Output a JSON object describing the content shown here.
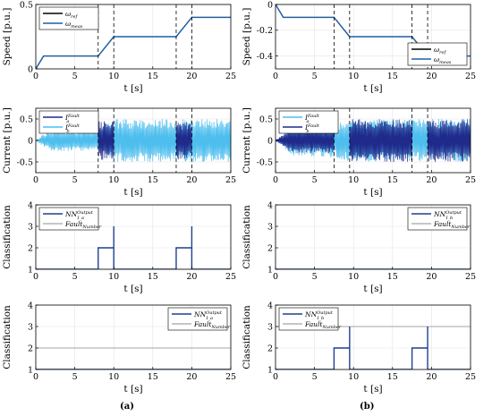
{
  "figure": {
    "label_a": "(a)",
    "label_b": "(b)"
  },
  "colors": {
    "ref": "#000000",
    "meas": "#1f5fa6",
    "current_light": "#4dbeee",
    "current_dark": "#1f2a8a",
    "nn": "#1f3f8f",
    "fault": "#8c8c8c",
    "axis": "#000000",
    "vline": "#000000"
  },
  "chart_data": [
    {
      "type": "line",
      "panel": "a1",
      "xlabel": "t [s]",
      "ylabel": "Speed [p.u.]",
      "xlim": [
        0,
        25
      ],
      "ylim": [
        0,
        0.5
      ],
      "xticks": [
        "0",
        "5",
        "10",
        "15",
        "20",
        "25"
      ],
      "yticks": [
        "0",
        "0.5"
      ],
      "legend": {
        "position": "top-left",
        "entries": [
          {
            "name": "ω_ref",
            "base": "ω",
            "sub": "ref",
            "style": "ref"
          },
          {
            "name": "ω_meas",
            "base": "ω",
            "sub": "meas",
            "style": "meas"
          }
        ]
      },
      "vlines": [
        8,
        10,
        18,
        20
      ],
      "series": [
        {
          "name": "ω_ref",
          "style": "ref",
          "x": [
            0,
            1,
            2,
            8,
            10,
            18,
            20,
            25
          ],
          "y": [
            0,
            0.1,
            0.1,
            0.1,
            0.25,
            0.25,
            0.4,
            0.4
          ]
        },
        {
          "name": "ω_meas",
          "style": "meas",
          "x": [
            0,
            1,
            2,
            8,
            10,
            18,
            20,
            25
          ],
          "y": [
            0,
            0.1,
            0.1,
            0.1,
            0.25,
            0.25,
            0.4,
            0.4
          ]
        }
      ]
    },
    {
      "type": "line",
      "panel": "b1",
      "xlabel": "t [s]",
      "ylabel": "Speed [p.u.]",
      "xlim": [
        0,
        25
      ],
      "ylim": [
        -0.5,
        0
      ],
      "xticks": [
        "0",
        "5",
        "10",
        "15",
        "20",
        "25"
      ],
      "yticks": [
        "0",
        "-0.2",
        "-0.4"
      ],
      "legend": {
        "position": "bottom-right",
        "entries": [
          {
            "name": "ω_ref",
            "base": "ω",
            "sub": "ref",
            "style": "ref"
          },
          {
            "name": "ω_meas",
            "base": "ω",
            "sub": "meas",
            "style": "meas"
          }
        ]
      },
      "vlines": [
        7.5,
        9.5,
        17.5,
        19.5
      ],
      "series": [
        {
          "name": "ω_ref",
          "style": "ref",
          "x": [
            0,
            1,
            2,
            7.5,
            9.5,
            17.5,
            19.5,
            25
          ],
          "y": [
            0,
            -0.1,
            -0.1,
            -0.1,
            -0.25,
            -0.25,
            -0.4,
            -0.4
          ]
        },
        {
          "name": "ω_meas",
          "style": "meas",
          "x": [
            0,
            1,
            2,
            7.5,
            9.5,
            17.5,
            19.5,
            25
          ],
          "y": [
            0,
            -0.1,
            -0.1,
            -0.1,
            -0.25,
            -0.25,
            -0.4,
            -0.4
          ]
        }
      ]
    },
    {
      "type": "area",
      "panel": "a2",
      "xlabel": "t [s]",
      "ylabel": "Current [p.u.]",
      "xlim": [
        0,
        25
      ],
      "ylim": [
        -0.75,
        0.75
      ],
      "xticks": [
        "0",
        "5",
        "10",
        "15",
        "20",
        "25"
      ],
      "yticks": [
        "0.5",
        "0",
        "-0.5"
      ],
      "legend": {
        "position": "top-left",
        "entries": [
          {
            "name": "I_a^Fault",
            "base": "I",
            "sup": "Fault",
            "sub": "a",
            "style": "current_dark"
          },
          {
            "name": "I_b^Fault",
            "base": "I",
            "sup": "Fault",
            "sub": "b",
            "style": "current_light"
          }
        ]
      },
      "vlines": [
        8,
        10,
        18,
        20
      ],
      "envelopes": [
        {
          "name": "I_b^Fault",
          "style": "current_light",
          "x": [
            0,
            1,
            2,
            8,
            10,
            18,
            20,
            25
          ],
          "amp": [
            0,
            0.15,
            0.25,
            0.25,
            0.5,
            0.5,
            0.5,
            0.5
          ]
        },
        {
          "name": "I_a^Fault",
          "style": "current_dark",
          "x": [
            8,
            10
          ],
          "amp": [
            0.45,
            0.45
          ]
        },
        {
          "name": "I_a^Fault",
          "style": "current_dark",
          "x": [
            18,
            20
          ],
          "amp": [
            0.45,
            0.45
          ]
        }
      ]
    },
    {
      "type": "area",
      "panel": "b2",
      "xlabel": "t [s]",
      "ylabel": "Current [p.u.]",
      "xlim": [
        0,
        25
      ],
      "ylim": [
        -0.75,
        0.75
      ],
      "xticks": [
        "0",
        "5",
        "10",
        "15",
        "20",
        "25"
      ],
      "yticks": [
        "0.5",
        "0",
        "-0.5"
      ],
      "legend": {
        "position": "top-left",
        "entries": [
          {
            "name": "I_a^Fault",
            "base": "I",
            "sup": "Fault",
            "sub": "a",
            "style": "current_light"
          },
          {
            "name": "I_b^Fault",
            "base": "I",
            "sup": "Fault",
            "sub": "b",
            "style": "current_dark"
          }
        ]
      },
      "vlines": [
        7.5,
        9.5,
        17.5,
        19.5
      ],
      "envelopes": [
        {
          "name": "I_a^Fault",
          "style": "current_light",
          "x": [
            0,
            1,
            2,
            7.5,
            9.5,
            17.5,
            19.5,
            25
          ],
          "amp": [
            0,
            0.15,
            0.35,
            0.4,
            0.5,
            0.5,
            0.5,
            0.5
          ]
        },
        {
          "name": "I_b^Fault",
          "style": "current_dark",
          "x": [
            0,
            1,
            2,
            7.5
          ],
          "amp": [
            0,
            0.15,
            0.3,
            0.3
          ]
        },
        {
          "name": "I_b^Fault",
          "style": "current_dark",
          "x": [
            9.5,
            17.5
          ],
          "amp": [
            0.5,
            0.5
          ]
        },
        {
          "name": "I_b^Fault",
          "style": "current_dark",
          "x": [
            19.5,
            25
          ],
          "amp": [
            0.5,
            0.5
          ]
        }
      ]
    },
    {
      "type": "line",
      "panel": "a3",
      "xlabel": "t [s]",
      "ylabel": "Classification",
      "xlim": [
        0,
        25
      ],
      "ylim": [
        1,
        4
      ],
      "xticks": [
        "0",
        "5",
        "10",
        "15",
        "20",
        "25"
      ],
      "yticks": [
        "1",
        "2",
        "3",
        "4"
      ],
      "legend": {
        "position": "top-left",
        "entries": [
          {
            "name": "NN_Ia^Output",
            "base": "NN",
            "sup": "Output",
            "sub": "I_a",
            "style": "nn"
          },
          {
            "name": "Fault_Number",
            "base": "Fault",
            "sub": "Number",
            "style": "fault"
          }
        ]
      },
      "series": [
        {
          "name": "Fault_Number",
          "style": "fault",
          "x": [
            0,
            25
          ],
          "y": [
            1,
            1
          ]
        },
        {
          "name": "NN_Ia^Output",
          "style": "nn",
          "x": [
            0,
            8,
            8,
            10,
            10,
            10,
            18,
            18,
            20,
            20,
            20,
            25
          ],
          "y": [
            1,
            1,
            2,
            2,
            3,
            1,
            1,
            2,
            2,
            3,
            1,
            1
          ]
        }
      ]
    },
    {
      "type": "line",
      "panel": "b3",
      "xlabel": "t [s]",
      "ylabel": "Classification",
      "xlim": [
        0,
        25
      ],
      "ylim": [
        1,
        4
      ],
      "xticks": [
        "0",
        "5",
        "10",
        "15",
        "20",
        "25"
      ],
      "yticks": [
        "1",
        "2",
        "3",
        "4"
      ],
      "legend": {
        "position": "top-right",
        "entries": [
          {
            "name": "NN_Ib^Output",
            "base": "NN",
            "sup": "Output",
            "sub": "I_b",
            "style": "nn"
          },
          {
            "name": "Fault_Number",
            "base": "Fault",
            "sub": "Number",
            "style": "fault"
          }
        ]
      },
      "series": [
        {
          "name": "Fault_Number",
          "style": "fault",
          "x": [
            0,
            25
          ],
          "y": [
            1,
            1
          ]
        },
        {
          "name": "NN_Ib^Output",
          "style": "nn",
          "x": [
            0,
            25
          ],
          "y": [
            1,
            1
          ]
        }
      ]
    },
    {
      "type": "line",
      "panel": "a4",
      "xlabel": "t [s]",
      "ylabel": "Classification",
      "xlim": [
        0,
        25
      ],
      "ylim": [
        1,
        4
      ],
      "xticks": [
        "0",
        "5",
        "10",
        "15",
        "20",
        "25"
      ],
      "yticks": [
        "1",
        "2",
        "3",
        "4"
      ],
      "legend": {
        "position": "top-right",
        "entries": [
          {
            "name": "NN_Ia^Output",
            "base": "NN",
            "sup": "Output",
            "sub": "I_a",
            "style": "nn"
          },
          {
            "name": "Fault_Number",
            "base": "Fault",
            "sub": "Number",
            "style": "fault"
          }
        ]
      },
      "series": [
        {
          "name": "Fault_Number",
          "style": "fault",
          "x": [
            0,
            25
          ],
          "y": [
            2,
            2
          ]
        },
        {
          "name": "NN_Ia^Output",
          "style": "nn",
          "x": [
            0,
            25
          ],
          "y": [
            1,
            1
          ]
        }
      ]
    },
    {
      "type": "line",
      "panel": "b4",
      "xlabel": "t [s]",
      "ylabel": "Classification",
      "xlim": [
        0,
        25
      ],
      "ylim": [
        1,
        4
      ],
      "xticks": [
        "0",
        "5",
        "10",
        "15",
        "20",
        "25"
      ],
      "yticks": [
        "1",
        "2",
        "3",
        "4"
      ],
      "legend": {
        "position": "top-left",
        "entries": [
          {
            "name": "NN_Ib^Output",
            "base": "NN",
            "sup": "Output",
            "sub": "I_b",
            "style": "nn"
          },
          {
            "name": "Fault_Number",
            "base": "Fault",
            "sub": "Number",
            "style": "fault"
          }
        ]
      },
      "series": [
        {
          "name": "Fault_Number",
          "style": "fault",
          "x": [
            0,
            25
          ],
          "y": [
            3,
            3
          ]
        },
        {
          "name": "NN_Ib^Output",
          "style": "nn",
          "x": [
            0,
            7.5,
            7.5,
            9.5,
            9.5,
            9.5,
            17.5,
            17.5,
            19.5,
            19.5,
            19.5,
            25
          ],
          "y": [
            1,
            1,
            2,
            2,
            3,
            1,
            1,
            2,
            2,
            3,
            1,
            1
          ]
        }
      ]
    }
  ]
}
